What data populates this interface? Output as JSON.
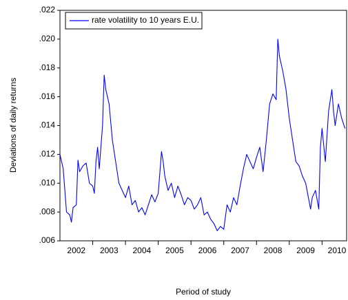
{
  "chart_data": {
    "type": "line",
    "ylabel": "Deviations of daily returns",
    "xlabel": "Period of study",
    "x": [
      2002.0,
      2002.05,
      2002.1,
      2002.15,
      2002.2,
      2002.3,
      2002.35,
      2002.4,
      2002.5,
      2002.55,
      2002.6,
      2002.7,
      2002.8,
      2002.9,
      2003.0,
      2003.05,
      2003.1,
      2003.15,
      2003.2,
      2003.3,
      2003.35,
      2003.4,
      2003.5,
      2003.6,
      2003.7,
      2003.8,
      2003.9,
      2004.0,
      2004.1,
      2004.2,
      2004.3,
      2004.4,
      2004.5,
      2004.6,
      2004.7,
      2004.8,
      2004.9,
      2005.0,
      2005.1,
      2005.15,
      2005.2,
      2005.3,
      2005.4,
      2005.5,
      2005.6,
      2005.7,
      2005.8,
      2005.9,
      2006.0,
      2006.1,
      2006.2,
      2006.3,
      2006.4,
      2006.5,
      2006.6,
      2006.7,
      2006.8,
      2006.9,
      2007.0,
      2007.1,
      2007.2,
      2007.3,
      2007.4,
      2007.5,
      2007.6,
      2007.7,
      2007.8,
      2007.9,
      2008.0,
      2008.1,
      2008.2,
      2008.3,
      2008.4,
      2008.5,
      2008.6,
      2008.65,
      2008.7,
      2008.8,
      2008.9,
      2009.0,
      2009.1,
      2009.2,
      2009.3,
      2009.4,
      2009.5,
      2009.6,
      2009.65,
      2009.7,
      2009.8,
      2009.9,
      2009.95,
      2010.0,
      2010.1,
      2010.2,
      2010.3,
      2010.35,
      2010.4,
      2010.5,
      2010.6,
      2010.7
    ],
    "series": [
      {
        "name": "rate volatility to 10 years E.U.",
        "color": "#0000ff",
        "values": [
          0.012,
          0.0115,
          0.011,
          0.0095,
          0.008,
          0.0078,
          0.0073,
          0.0083,
          0.0085,
          0.0116,
          0.0108,
          0.0112,
          0.0114,
          0.01,
          0.0098,
          0.0093,
          0.0115,
          0.0125,
          0.011,
          0.014,
          0.0175,
          0.0165,
          0.0155,
          0.013,
          0.0115,
          0.01,
          0.0095,
          0.009,
          0.0098,
          0.0085,
          0.0088,
          0.008,
          0.0083,
          0.0078,
          0.0085,
          0.0092,
          0.0087,
          0.0093,
          0.0122,
          0.0115,
          0.0105,
          0.0095,
          0.01,
          0.009,
          0.0098,
          0.0092,
          0.0085,
          0.009,
          0.0088,
          0.0082,
          0.0085,
          0.009,
          0.0078,
          0.008,
          0.0075,
          0.0072,
          0.0067,
          0.007,
          0.0068,
          0.0085,
          0.008,
          0.009,
          0.0085,
          0.0098,
          0.011,
          0.012,
          0.0115,
          0.011,
          0.0118,
          0.0125,
          0.0108,
          0.013,
          0.0155,
          0.0162,
          0.0158,
          0.02,
          0.0188,
          0.0178,
          0.0165,
          0.0145,
          0.013,
          0.0115,
          0.0112,
          0.0105,
          0.01,
          0.0088,
          0.0082,
          0.009,
          0.0095,
          0.0082,
          0.0125,
          0.0138,
          0.0115,
          0.015,
          0.0165,
          0.015,
          0.014,
          0.0155,
          0.0145,
          0.0138
        ]
      }
    ],
    "xlim": [
      2002.0,
      2010.75
    ],
    "xticks": [
      2002,
      2003,
      2004,
      2005,
      2006,
      2007,
      2008,
      2009,
      2010
    ],
    "ylim": [
      0.006,
      0.022
    ],
    "yticks": [
      {
        "value": 0.006,
        "label": ".006"
      },
      {
        "value": 0.008,
        "label": ".008"
      },
      {
        "value": 0.01,
        "label": ".010"
      },
      {
        "value": 0.012,
        "label": ".012"
      },
      {
        "value": 0.014,
        "label": ".014"
      },
      {
        "value": 0.016,
        "label": ".016"
      },
      {
        "value": 0.018,
        "label": ".018"
      },
      {
        "value": 0.02,
        "label": ".020"
      },
      {
        "value": 0.022,
        "label": ".022"
      }
    ],
    "grid": false,
    "legend": "upper left"
  }
}
